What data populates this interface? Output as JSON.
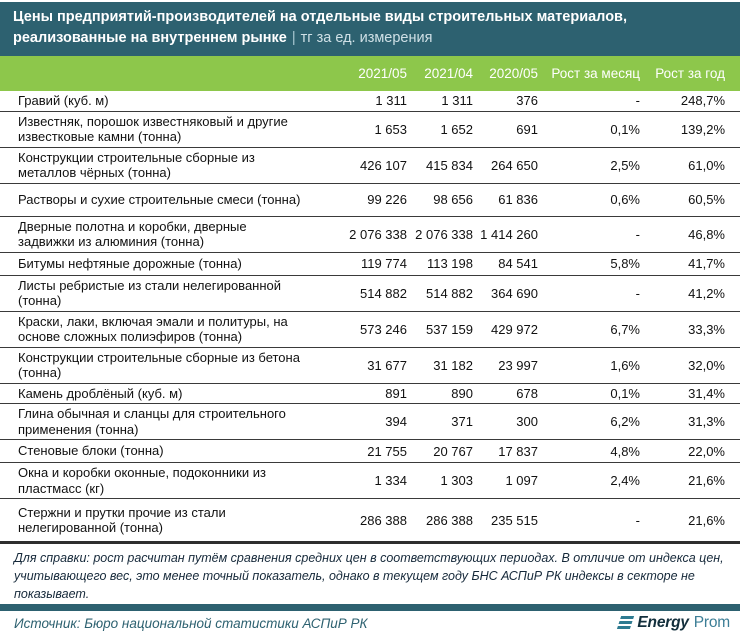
{
  "header": {
    "title_main": "Цены предприятий-производителей на отдельные виды строительных материалов, реализованные на внутреннем рынке",
    "title_sep": "|",
    "title_unit": "тг за ед. измерения"
  },
  "chart_data": {
    "type": "table",
    "title": "Цены предприятий-производителей на отдельные виды строительных материалов, реализованные на внутреннем рынке",
    "unit": "тг за ед. измерения",
    "columns": [
      "2021/05",
      "2021/04",
      "2020/05",
      "Рост за месяц",
      "Рост за год"
    ],
    "rows": [
      {
        "label": "Гравий (куб. м)",
        "values": [
          "1 311",
          "1 311",
          "376",
          "-",
          "248,7%"
        ]
      },
      {
        "label": "Известняк, порошок известняковый и другие известковые камни (тонна)",
        "values": [
          "1 653",
          "1 652",
          "691",
          "0,1%",
          "139,2%"
        ]
      },
      {
        "label": "Конструкции строительные сборные из металлов чёрных (тонна)",
        "values": [
          "426 107",
          "415 834",
          "264 650",
          "2,5%",
          "61,0%"
        ]
      },
      {
        "label": "Растворы и сухие строительные смеси (тонна)",
        "values": [
          "99 226",
          "98 656",
          "61 836",
          "0,6%",
          "60,5%"
        ]
      },
      {
        "label": "Дверные полотна и коробки, дверные задвижки из алюминия (тонна)",
        "values": [
          "2 076 338",
          "2 076 338",
          "1 414 260",
          "-",
          "46,8%"
        ]
      },
      {
        "label": "Битумы нефтяные дорожные (тонна)",
        "values": [
          "119 774",
          "113 198",
          "84 541",
          "5,8%",
          "41,7%"
        ]
      },
      {
        "label": "Листы ребристые из стали нелегированной (тонна)",
        "values": [
          "514 882",
          "514 882",
          "364 690",
          "-",
          "41,2%"
        ]
      },
      {
        "label": "Краски, лаки, включая эмали и политуры, на основе сложных полиэфиров (тонна)",
        "values": [
          "573 246",
          "537 159",
          "429 972",
          "6,7%",
          "33,3%"
        ]
      },
      {
        "label": "Конструкции строительные сборные из бетона (тонна)",
        "values": [
          "31 677",
          "31 182",
          "23 997",
          "1,6%",
          "32,0%"
        ]
      },
      {
        "label": "Камень дроблёный (куб. м)",
        "values": [
          "891",
          "890",
          "678",
          "0,1%",
          "31,4%"
        ]
      },
      {
        "label": "Глина обычная и сланцы для строительного применения (тонна)",
        "values": [
          "394",
          "371",
          "300",
          "6,2%",
          "31,3%"
        ]
      },
      {
        "label": "Стеновые блоки (тонна)",
        "values": [
          "21 755",
          "20 767",
          "17 837",
          "4,8%",
          "22,0%"
        ]
      },
      {
        "label": "Окна и коробки оконные, подоконники из пластмасс (кг)",
        "values": [
          "1 334",
          "1 303",
          "1 097",
          "2,4%",
          "21,6%"
        ]
      },
      {
        "label": "Стержни и прутки прочие из стали нелегированной (тонна)",
        "values": [
          "286 388",
          "286 388",
          "235 515",
          "-",
          "21,6%"
        ]
      }
    ]
  },
  "footnote": "Для справки: рост расчитан путём сравнения средних цен в соответствующих периодах. В отличие от индекса цен, учитывающего вес, это менее точный показатель, однако в текущем году БНС АСПиР РК индексы в секторе не показывает.",
  "source": "Источник: Бюро национальной статистики АСПиР РК",
  "logo": {
    "bold": "Energy",
    "light": "Prom"
  },
  "colors": {
    "teal": "#2d6170",
    "green": "#8dc74b",
    "logo_teal": "#2e7b91"
  }
}
